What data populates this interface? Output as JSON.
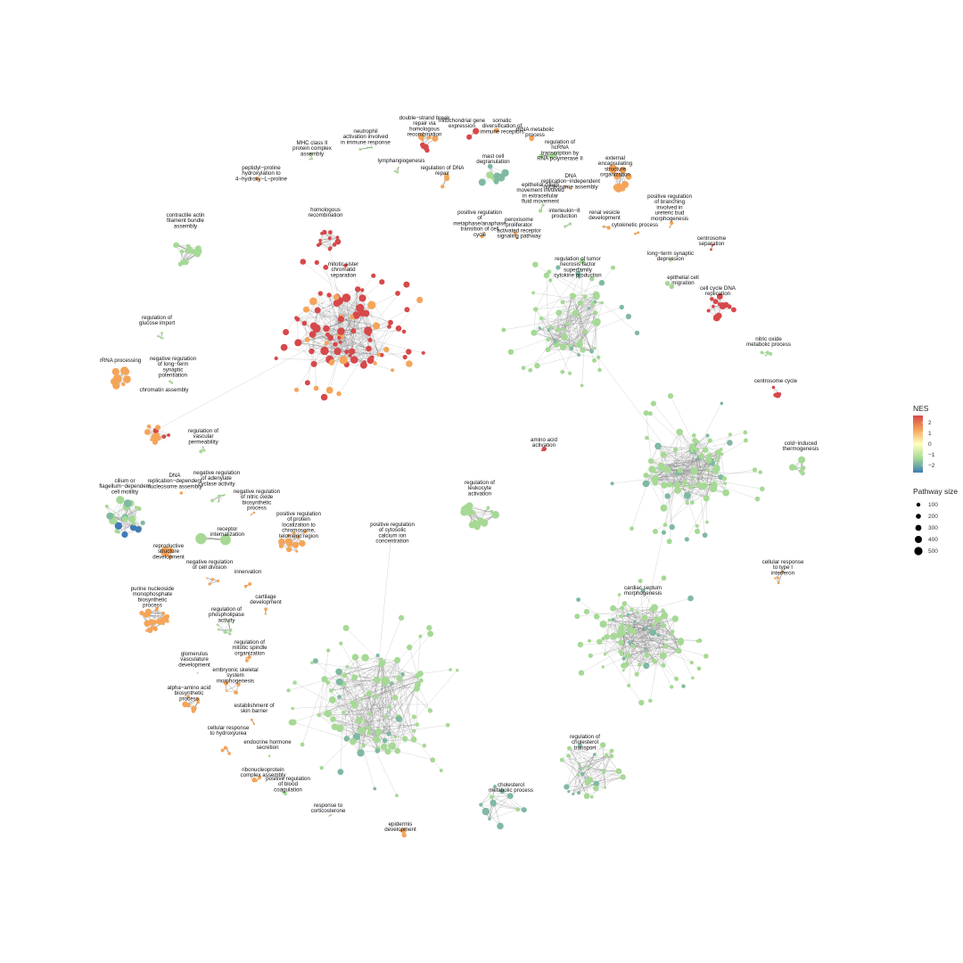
{
  "legend": {
    "color_title": "NES",
    "color_ticks": [
      "2",
      "1",
      "0",
      "−1",
      "−2"
    ],
    "size_title": "Pathway size",
    "size_ticks": [
      "100",
      "200",
      "300",
      "400",
      "500"
    ]
  },
  "colors": {
    "high": "#d7484a",
    "mid_high": "#f4a55a",
    "mid": "#ffffbf",
    "mid_low": "#a6d995",
    "low": "#3f7bb6"
  },
  "labels": [
    "double−strand break\nrepair via\nhomologous\nrecombination",
    "mitochondrial gene\nexpression",
    "somatic\ndiversification of\nimmune receptors",
    "tRNA metabolic\nprocess",
    "neutrophil\nactivation involved\nin immune response",
    "MHC class II\nprotein complex\nassembly",
    "regulation of\nncRNA\ntranscription by\nRNA polymerase II",
    "peptidyl−proline\nhydroxylation to\n4−hydroxy−L−proline",
    "lymphangiogenesis",
    "regulation of DNA\nrepair",
    "mast cell\ndegranulation",
    "external\nencapsulating\nstructure\norganization",
    "DNA\nreplication−independent\nnucleosome assembly",
    "epithelial cilium\nmovement involved\nin extracellular\nfluid movement",
    "homologous\nrecombination",
    "contractile actin\nfilament bundle\nassembly",
    "positive regulation\nof\nmetaphase/anaphase\ntransition of cell\ncycle",
    "peroxisome\nproliferator\nactivated receptor\nsignaling pathway",
    "interleukin−8\nproduction",
    "renal vesicle\ndevelopment",
    "positive regulation\nof branching\ninvolved in\nureteric bud\nmorphogenesis",
    "cytokinetic process",
    "centrosome\nseparation",
    "long−term synaptic\ndepression",
    "mitotic sister\nchromatid\nseparation",
    "regulation of tumor\nnecrosis factor\nsuperfamily\ncytokine production",
    "epithelial cell\nmigration",
    "cell cycle DNA\nreplication",
    "regulation of\nglucose import",
    "nitric oxide\nmetabolic process",
    "rRNA processing",
    "negative regulation\nof long−term\nsynaptic\npotentiation",
    "chromatin assembly",
    "centrosome cycle",
    "regulation of\nvascular\npermeability",
    "amino acid\nactivation",
    "cold−induced\nthermogenesis",
    "regulation of\nleukocyte\nactivation",
    "DNA\nreplication−dependent\nnucleosome assembly",
    "negative regulation\nof adenylate\ncyclase activity",
    "cilium or\nflagellum−dependent\ncell motility",
    "negative regulation\nof nitric oxide\nbiosynthetic\nprocess",
    "positive regulation\nof protein\nlocalization to\nchromosome,\ntelomeric region",
    "positive regulation\nof cytosolic\ncalcium ion\nconcentration",
    "receptor\ninternalization",
    "reproductive\nstructure\ndevelopment",
    "negative regulation\nof cell division",
    "innervation",
    "cellular response\nto type I\ninterferon",
    "purine nucleoside\nmonophosphate\nbiosynthetic\nprocess",
    "cartilage\ndevelopment",
    "cardiac septum\nmorphogenesis",
    "regulation of\nphospholipase\nactivity",
    "regulation of\nmitotic spindle\norganization",
    "glomerulus\nvasculature\ndevelopment",
    "embryonic skeletal\nsystem\nmorphogenesis",
    "alpha−amino acid\nbiosynthetic\nprocess",
    "establishment of\nskin barrier",
    "cellular response\nto hydroxyurea",
    "endocrine hormone\nsecretion",
    "regulation of\ncholesterol\ntransport",
    "ribonucleoprotein\ncomplex assembly",
    "positive regulation\nof blood\ncoagulation",
    "cholesterol\nmetabolic process",
    "response to\ncorticosterone",
    "epidermis\ndevelopment"
  ]
}
